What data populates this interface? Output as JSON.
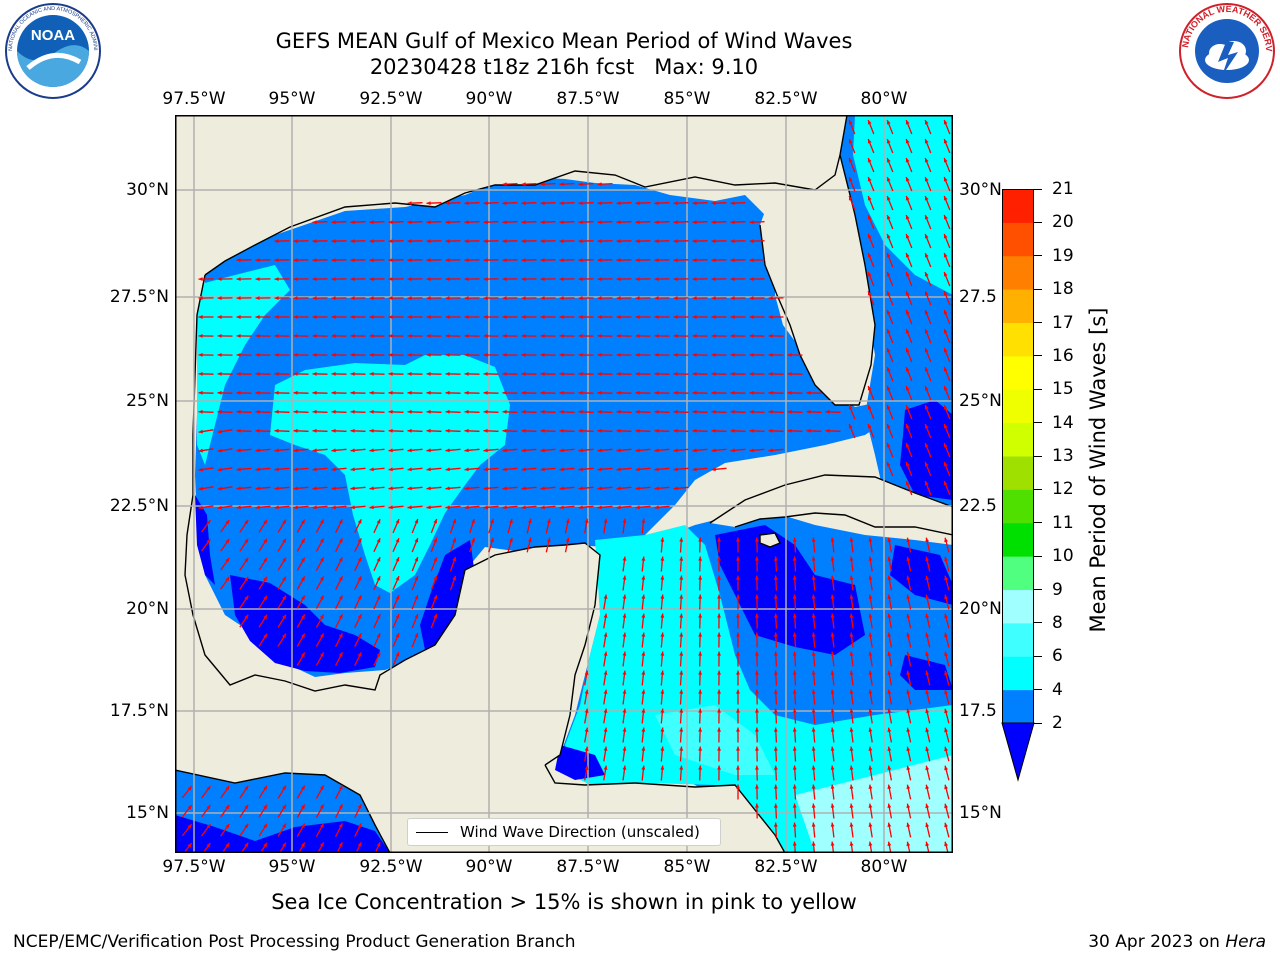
{
  "header": {
    "title_line1": "GEFS MEAN Gulf of Mexico Mean Period of Wind Waves",
    "title_line2": "20230428 t18z 216h fcst   Max: 9.10"
  },
  "logos": {
    "noaa": "NOAA",
    "noaa_ring_text": "NATIONAL OCEANIC AND ATMOSPHERIC ADMINISTRATION · U.S. DEPARTMENT OF COMMERCE",
    "nws_ring_text": "NATIONAL WEATHER SERVICE"
  },
  "map": {
    "lon_ticks": [
      "97.5°W",
      "95°W",
      "92.5°W",
      "90°W",
      "87.5°W",
      "85°W",
      "82.5°W",
      "80°W"
    ],
    "lat_ticks_left": [
      "30°N",
      "27.5°N",
      "25°N",
      "22.5°N",
      "20°N",
      "17.5°N",
      "15°N"
    ],
    "lat_ticks_right": [
      "30°N",
      "27.5",
      "25°N",
      "22.5",
      "20°N",
      "17.5",
      "15°N"
    ],
    "colors": {
      "land": "#eeecdc",
      "coast": "#000000",
      "grid": "#b0b0b0",
      "arrow": "#ff0000"
    },
    "wave_direction": "westward in the Gulf, northwest along the east coast, northward in the Caribbean"
  },
  "legend": {
    "label": "Wind Wave Direction (unscaled)"
  },
  "colorbar": {
    "label": "Mean Period of Wind Waves [s]",
    "ticks": [
      "2",
      "4",
      "6",
      "8",
      "9",
      "10",
      "11",
      "12",
      "13",
      "14",
      "15",
      "16",
      "17",
      "18",
      "19",
      "20",
      "21"
    ],
    "extend": "min",
    "under_color": "#0000ff",
    "colors": [
      "#0080ff",
      "#00ffff",
      "#40ffff",
      "#a0ffff",
      "#50ff80",
      "#00e000",
      "#50e000",
      "#a0e000",
      "#d0ff00",
      "#f0ff00",
      "#ffff00",
      "#ffe000",
      "#ffb000",
      "#ff8000",
      "#ff5000",
      "#ff2000"
    ]
  },
  "footer": {
    "subtitle": "Sea Ice Concentration > 15% is shown in pink to yellow",
    "left": "NCEP/EMC/Verification Post Processing Product Generation Branch",
    "right_date": "30 Apr 2023 on",
    "right_host": "Hera"
  }
}
